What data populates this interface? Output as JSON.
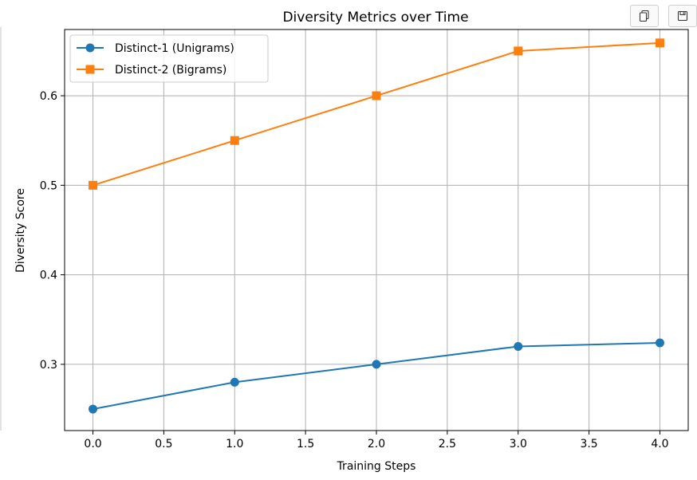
{
  "toolbar": {
    "copy_icon": "copy-icon",
    "save_icon": "save-icon"
  },
  "chart_data": {
    "type": "line",
    "title": "Diversity Metrics over Time",
    "xlabel": "Training Steps",
    "ylabel": "Diversity Score",
    "x": [
      0,
      1,
      2,
      3,
      4
    ],
    "xlim": [
      -0.2,
      4.2
    ],
    "ylim": [
      0.226,
      0.674
    ],
    "xticks": [
      0.0,
      0.5,
      1.0,
      1.5,
      2.0,
      2.5,
      3.0,
      3.5,
      4.0
    ],
    "xtick_labels": [
      "0.0",
      "0.5",
      "1.0",
      "1.5",
      "2.0",
      "2.5",
      "3.0",
      "3.5",
      "4.0"
    ],
    "yticks": [
      0.3,
      0.4,
      0.5,
      0.6
    ],
    "ytick_labels": [
      "0.3",
      "0.4",
      "0.5",
      "0.6"
    ],
    "grid": true,
    "legend_position": "top-left",
    "series": [
      {
        "name": "Distinct-1 (Unigrams)",
        "values": [
          0.25,
          0.28,
          0.3,
          0.32,
          0.324
        ],
        "color": "#1f77b4",
        "marker": "circle"
      },
      {
        "name": "Distinct-2 (Bigrams)",
        "values": [
          0.5,
          0.55,
          0.6,
          0.65,
          0.659
        ],
        "color": "#ff7f0e",
        "marker": "square"
      }
    ]
  }
}
